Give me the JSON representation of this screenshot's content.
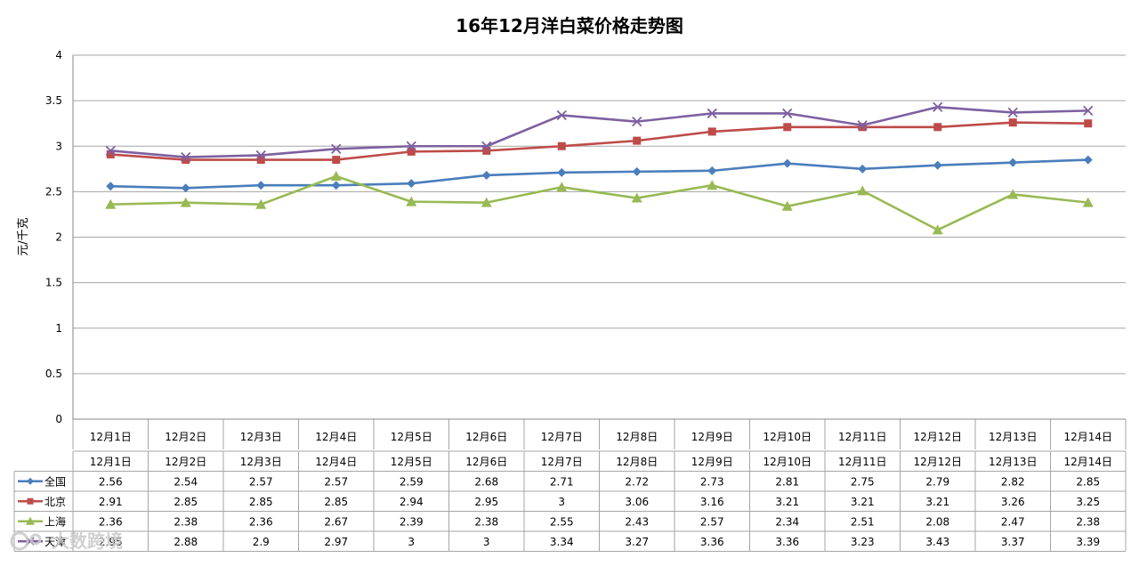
{
  "chart_data": {
    "type": "line",
    "title": "16年12月洋白菜价格走势图",
    "ylabel": "元/千克",
    "xlabel": "",
    "ylim": [
      0,
      4
    ],
    "yticks": [
      "0",
      "0.5",
      "1",
      "1.5",
      "2",
      "2.5",
      "3",
      "3.5",
      "4"
    ],
    "grid": true,
    "legend": "data-table",
    "categories": [
      "12月1日",
      "12月2日",
      "12月3日",
      "12月4日",
      "12月5日",
      "12月6日",
      "12月7日",
      "12月8日",
      "12月9日",
      "12月10日",
      "12月11日",
      "12月12日",
      "12月13日",
      "12月14日"
    ],
    "series": [
      {
        "name": "全国",
        "color": "#4a7ebb",
        "marker": "diamond",
        "values": [
          2.56,
          2.54,
          2.57,
          2.57,
          2.59,
          2.68,
          2.71,
          2.72,
          2.73,
          2.81,
          2.75,
          2.79,
          2.82,
          2.85
        ],
        "labels": [
          "2.56",
          "2.54",
          "2.57",
          "2.57",
          "2.59",
          "2.68",
          "2.71",
          "2.72",
          "2.73",
          "2.81",
          "2.75",
          "2.79",
          "2.82",
          "2.85"
        ]
      },
      {
        "name": "北京",
        "color": "#be4b48",
        "marker": "square",
        "values": [
          2.91,
          2.85,
          2.85,
          2.85,
          2.94,
          2.95,
          3,
          3.06,
          3.16,
          3.21,
          3.21,
          3.21,
          3.26,
          3.25
        ],
        "labels": [
          "2.91",
          "2.85",
          "2.85",
          "2.85",
          "2.94",
          "2.95",
          "3",
          "3.06",
          "3.16",
          "3.21",
          "3.21",
          "3.21",
          "3.26",
          "3.25"
        ]
      },
      {
        "name": "上海",
        "color": "#98b954",
        "marker": "triangle",
        "values": [
          2.36,
          2.38,
          2.36,
          2.67,
          2.39,
          2.38,
          2.55,
          2.43,
          2.57,
          2.34,
          2.51,
          2.08,
          2.47,
          2.38
        ],
        "labels": [
          "2.36",
          "2.38",
          "2.36",
          "2.67",
          "2.39",
          "2.38",
          "2.55",
          "2.43",
          "2.57",
          "2.34",
          "2.51",
          "2.08",
          "2.47",
          "2.38"
        ]
      },
      {
        "name": "天津",
        "color": "#7d60a0",
        "marker": "x",
        "values": [
          2.95,
          2.88,
          2.9,
          2.97,
          3,
          3,
          3.34,
          3.27,
          3.36,
          3.36,
          3.23,
          3.43,
          3.37,
          3.39
        ],
        "labels": [
          "2.95",
          "2.88",
          "2.9",
          "2.97",
          "3",
          "3",
          "3.34",
          "3.27",
          "3.36",
          "3.36",
          "3.23",
          "3.43",
          "3.37",
          "3.39"
        ]
      }
    ]
  },
  "watermark": "大数跨境"
}
